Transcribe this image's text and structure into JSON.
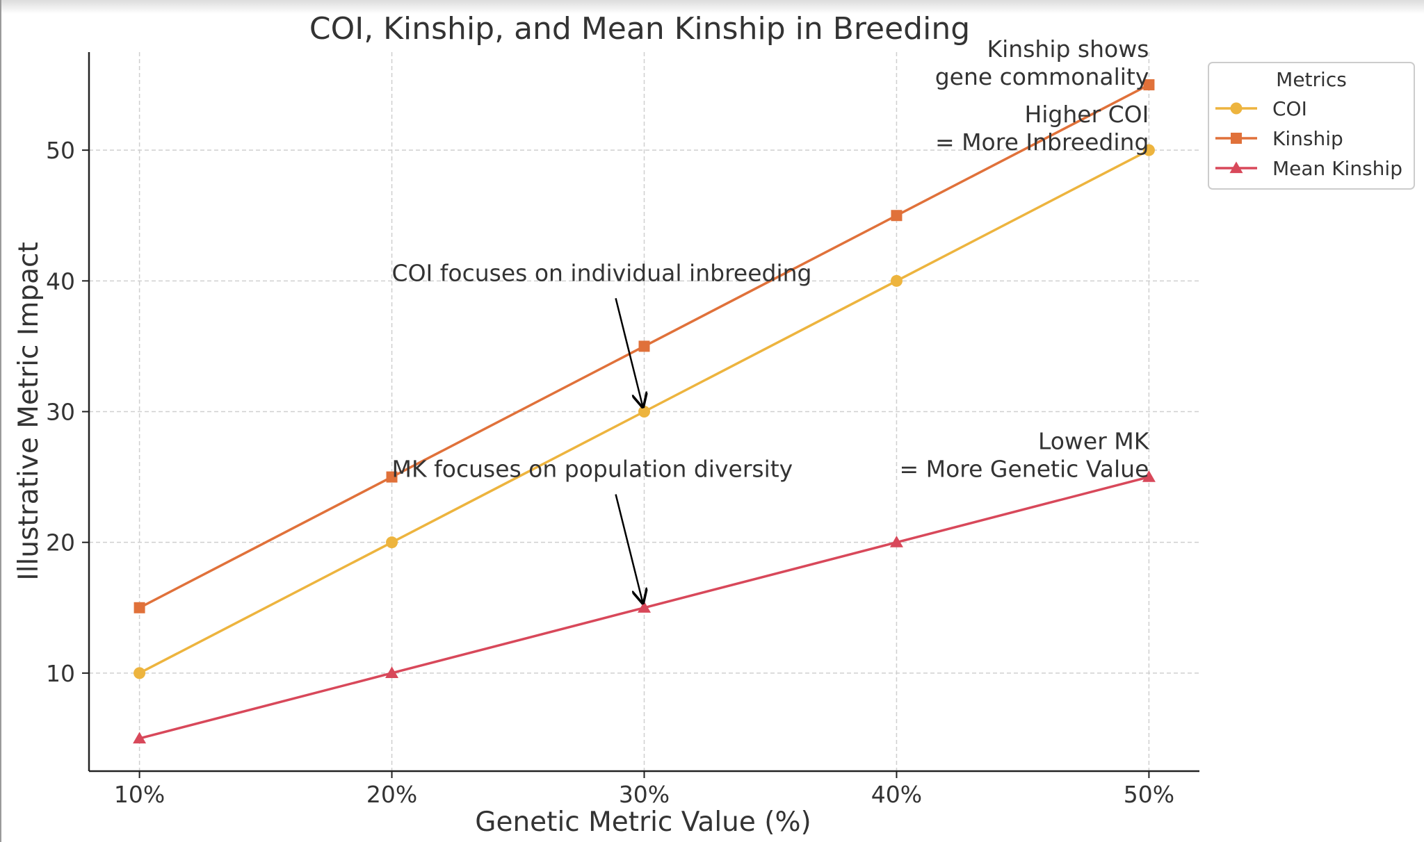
{
  "chart_data": {
    "type": "line",
    "title": "COI, Kinship, and Mean Kinship in Breeding",
    "xlabel": "Genetic Metric Value (%)",
    "ylabel": "Illustrative Metric Impact",
    "categories": [
      "10%",
      "20%",
      "30%",
      "40%",
      "50%"
    ],
    "x": [
      10,
      20,
      30,
      40,
      50
    ],
    "xlim": [
      8,
      52
    ],
    "ylim": [
      2.5,
      57.5
    ],
    "yticks": [
      10,
      20,
      30,
      40,
      50
    ],
    "grid": true,
    "legend": {
      "title": "Metrics",
      "placement": "top-right, outside plot"
    },
    "series": [
      {
        "name": "COI",
        "values": [
          10,
          20,
          30,
          40,
          50
        ],
        "color": "#EDB43E",
        "marker": "circle"
      },
      {
        "name": "Kinship",
        "values": [
          15,
          25,
          35,
          45,
          55
        ],
        "color": "#E0713A",
        "marker": "square"
      },
      {
        "name": "Mean Kinship",
        "values": [
          5,
          10,
          15,
          20,
          25
        ],
        "color": "#D8485A",
        "marker": "triangle"
      }
    ],
    "annotations": [
      {
        "id": "coi-note",
        "lines": [
          "COI focuses on individual inbreeding"
        ],
        "x": 20,
        "y": 40,
        "align": "left",
        "arrow_to": {
          "x": 30,
          "y": 30
        }
      },
      {
        "id": "mk-note",
        "lines": [
          "MK focuses on population diversity"
        ],
        "x": 20,
        "y": 25,
        "align": "left",
        "arrow_to": {
          "x": 30,
          "y": 15
        }
      },
      {
        "id": "kinship-note",
        "lines": [
          "Kinship shows",
          "gene commonality"
        ],
        "x": 50,
        "y": 55,
        "align": "right"
      },
      {
        "id": "higher-coi-note",
        "lines": [
          "Higher COI",
          "= More Inbreeding"
        ],
        "x": 50,
        "y": 50,
        "align": "right"
      },
      {
        "id": "lower-mk-note",
        "lines": [
          "Lower MK",
          "= More Genetic Value"
        ],
        "x": 50,
        "y": 25,
        "align": "right"
      }
    ]
  }
}
